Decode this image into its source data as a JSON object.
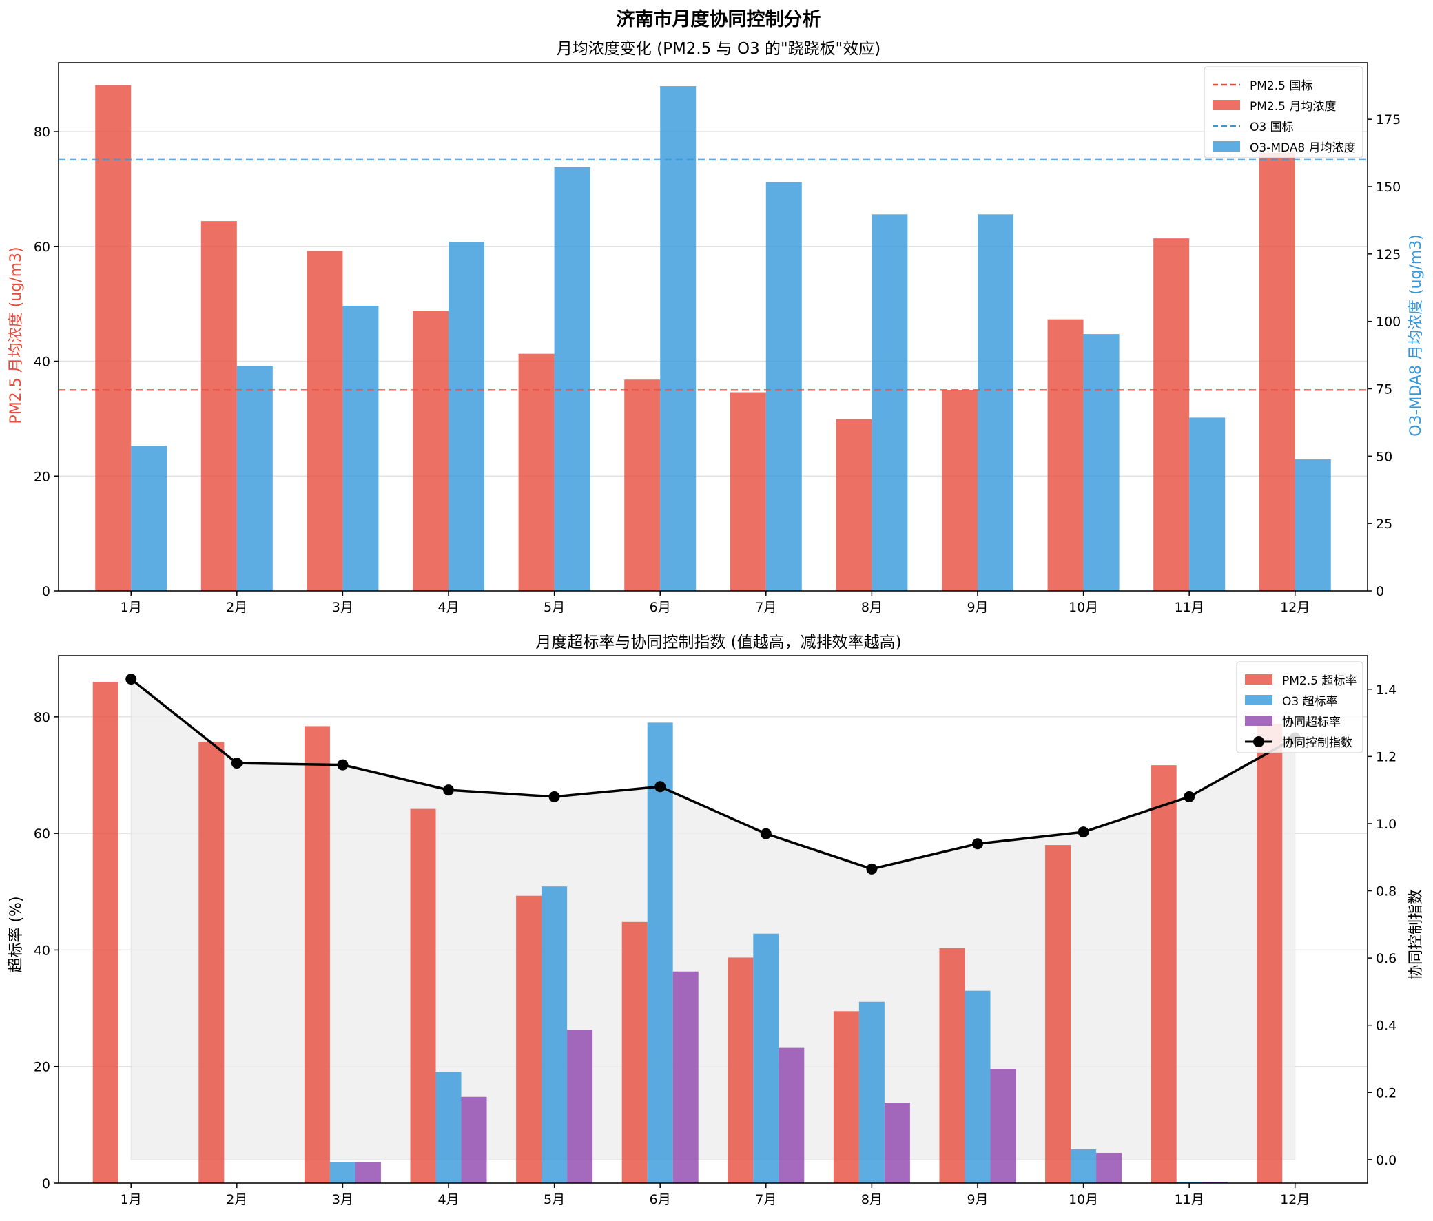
{
  "figure_title": "济南市月度协同控制分析",
  "chart_data": [
    {
      "type": "bar",
      "title": "月均浓度变化 (PM2.5 与 O3 的\"跷跷板\"效应)",
      "categories": [
        "1月",
        "2月",
        "3月",
        "4月",
        "5月",
        "6月",
        "7月",
        "8月",
        "9月",
        "10月",
        "11月",
        "12月"
      ],
      "ylabel": "PM2.5 月均浓度 (ug/m3)",
      "ylim": [
        0,
        92
      ],
      "yticks": [
        0,
        20,
        40,
        60,
        80
      ],
      "y2label": "O3-MDA8 月均浓度 (ug/m3)",
      "y2lim": [
        0,
        196
      ],
      "y2ticks": [
        0,
        25,
        50,
        75,
        100,
        125,
        150,
        175
      ],
      "grid": true,
      "legend_position": "top-right",
      "series": [
        {
          "name": "PM2.5 月均浓度",
          "axis": "left",
          "color": "#e74c3c",
          "values": [
            88.1,
            64.4,
            59.2,
            48.8,
            41.3,
            36.8,
            34.6,
            29.9,
            35.0,
            47.3,
            61.4,
            76.3
          ]
        },
        {
          "name": "O3-MDA8 月均浓度",
          "axis": "right",
          "color": "#3498db",
          "values": [
            53.8,
            83.5,
            105.8,
            129.5,
            157.2,
            187.3,
            151.6,
            139.7,
            139.7,
            95.3,
            64.3,
            48.8
          ]
        }
      ],
      "reference_lines": [
        {
          "name": "PM2.5 国标",
          "axis": "left",
          "value": 35,
          "color": "#e74c3c"
        },
        {
          "name": "O3 国标",
          "axis": "right",
          "value": 160,
          "color": "#3498db"
        }
      ],
      "legend": [
        "PM2.5 国标",
        "PM2.5 月均浓度",
        "O3 国标",
        "O3-MDA8 月均浓度"
      ]
    },
    {
      "type": "bar",
      "title": "月度超标率与协同控制指数 (值越高，减排效率越高)",
      "categories": [
        "1月",
        "2月",
        "3月",
        "4月",
        "5月",
        "6月",
        "7月",
        "8月",
        "9月",
        "10月",
        "11月",
        "12月"
      ],
      "ylabel": "超标率 (%)",
      "ylim": [
        0,
        90.5
      ],
      "yticks": [
        0,
        20,
        40,
        60,
        80
      ],
      "y2label": "协同控制指数",
      "y2lim": [
        -0.07,
        1.5
      ],
      "y2ticks": [
        0.0,
        0.2,
        0.4,
        0.6,
        0.8,
        1.0,
        1.2,
        1.4
      ],
      "grid": true,
      "legend_position": "top-right",
      "series": [
        {
          "name": "PM2.5 超标率",
          "axis": "left",
          "color": "#e74c3c",
          "values": [
            86.0,
            75.7,
            78.4,
            64.2,
            49.3,
            44.8,
            38.7,
            29.5,
            40.3,
            58.0,
            71.7,
            78.8
          ]
        },
        {
          "name": "O3 超标率",
          "axis": "left",
          "color": "#3498db",
          "values": [
            0,
            0,
            3.6,
            19.1,
            50.9,
            79.0,
            42.8,
            31.1,
            33.0,
            5.8,
            0.2,
            0
          ]
        },
        {
          "name": "协同超标率",
          "axis": "left",
          "color": "#8e44ad",
          "values": [
            0,
            0,
            3.6,
            14.8,
            26.3,
            36.3,
            23.2,
            13.8,
            19.6,
            5.2,
            0.2,
            0
          ]
        },
        {
          "name": "协同控制指数",
          "axis": "right",
          "type": "line",
          "color": "#000000",
          "values": [
            1.43,
            1.18,
            1.175,
            1.1,
            1.08,
            1.11,
            0.97,
            0.865,
            0.94,
            0.975,
            1.08,
            1.255
          ]
        }
      ],
      "legend": [
        "PM2.5 超标率",
        "O3 超标率",
        "协同超标率",
        "协同控制指数"
      ]
    }
  ]
}
